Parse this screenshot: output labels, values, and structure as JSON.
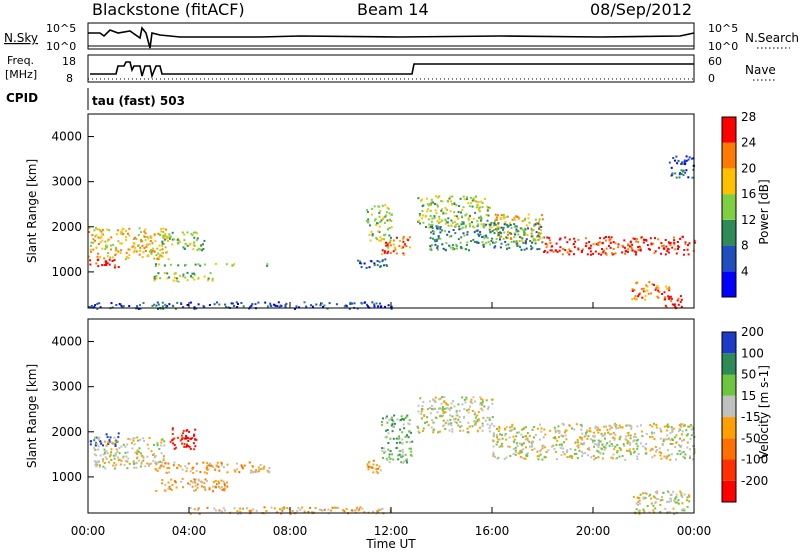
{
  "header": {
    "station": "Blackstone (fitACF)",
    "beam": "Beam 14",
    "date": "08/Sep/2012"
  },
  "aux_panels": {
    "nsky_label": "N.Sky",
    "nsky_ticks": [
      "10^5",
      "10^0"
    ],
    "nsearch_label": "N.Search",
    "nsearch_ticks": [
      "10^5",
      "10^0"
    ],
    "freq_label_1": "Freq.",
    "freq_label_2": "[MHz]",
    "freq_ticks": [
      "18",
      "8"
    ],
    "nave_label": "Nave",
    "nave_ticks": [
      "60",
      "0"
    ],
    "cpid_label": "CPID",
    "cpid_value": "tau (fast) 503"
  },
  "chart_data": [
    {
      "type": "heatmap",
      "name": "power",
      "ylabel": "Slant Range [km]",
      "yticks": [
        "1000",
        "2000",
        "3000",
        "4000"
      ],
      "ylim": [
        200,
        4500
      ],
      "colorbar_label": "Power [dB]",
      "colorbar_ticks": [
        "4",
        "8",
        "12",
        "16",
        "20",
        "24",
        "28"
      ],
      "colorbar_colors": [
        "#0000ff",
        "#1f4fbf",
        "#2e8b57",
        "#7fd040",
        "#ffc000",
        "#ff7a00",
        "#ff0000"
      ],
      "regions": [
        {
          "x0": 0.0,
          "x1": 3.2,
          "r0": 1300,
          "r1": 2000,
          "level": 4
        },
        {
          "x0": 0.0,
          "x1": 1.2,
          "r0": 1100,
          "r1": 1300,
          "level": 6
        },
        {
          "x0": 2.8,
          "x1": 4.6,
          "r0": 1500,
          "r1": 1900,
          "level": 3
        },
        {
          "x0": 2.5,
          "x1": 7.2,
          "r0": 1150,
          "r1": 1200,
          "level": 3
        },
        {
          "x0": 2.5,
          "x1": 5.0,
          "r0": 800,
          "r1": 1000,
          "level": 3
        },
        {
          "x0": 10.6,
          "x1": 12.0,
          "r0": 1100,
          "r1": 1300,
          "level": 1
        },
        {
          "x0": 11.0,
          "x1": 12.0,
          "r0": 1700,
          "r1": 2500,
          "level": 3
        },
        {
          "x0": 11.6,
          "x1": 12.8,
          "r0": 1400,
          "r1": 1800,
          "level": 5
        },
        {
          "x0": 13.0,
          "x1": 16.0,
          "r0": 2000,
          "r1": 2700,
          "level": 3
        },
        {
          "x0": 16.0,
          "x1": 18.0,
          "r0": 1700,
          "r1": 2300,
          "level": 4
        },
        {
          "x0": 18.0,
          "x1": 24.0,
          "r0": 1400,
          "r1": 1800,
          "level": 6
        },
        {
          "x0": 13.5,
          "x1": 18.0,
          "r0": 1500,
          "r1": 2100,
          "level": 2
        },
        {
          "x0": 21.5,
          "x1": 23.0,
          "r0": 400,
          "r1": 800,
          "level": 5
        },
        {
          "x0": 22.8,
          "x1": 23.5,
          "r0": 200,
          "r1": 500,
          "level": 6
        },
        {
          "x0": 23.0,
          "x1": 24.0,
          "r0": 3100,
          "r1": 3600,
          "level": 1
        },
        {
          "x0": 0.0,
          "x1": 12.0,
          "r0": 200,
          "r1": 350,
          "level": 1
        }
      ]
    },
    {
      "type": "heatmap",
      "name": "velocity",
      "ylabel": "Slant Range [km]",
      "yticks": [
        "1000",
        "2000",
        "3000",
        "4000"
      ],
      "ylim": [
        200,
        4500
      ],
      "colorbar_label": "Velocity [m s-1]",
      "colorbar_ticks": [
        "200",
        "100",
        "50",
        "15",
        "-15",
        "-50",
        "-100",
        "-200"
      ],
      "colorbar_colors": [
        "#1c3cc8",
        "#2e8b57",
        "#6cc640",
        "#c0c0c0",
        "#ffa000",
        "#ff7000",
        "#ff3000",
        "#ff0000"
      ],
      "regions": [
        {
          "x0": 0.0,
          "x1": 1.2,
          "r0": 1700,
          "r1": 2000,
          "level": 0
        },
        {
          "x0": 0.2,
          "x1": 3.0,
          "r0": 1200,
          "r1": 1900,
          "level": 3
        },
        {
          "x0": 3.2,
          "x1": 4.4,
          "r0": 1600,
          "r1": 2100,
          "level": 7
        },
        {
          "x0": 2.5,
          "x1": 7.2,
          "r0": 1100,
          "r1": 1350,
          "level": 4
        },
        {
          "x0": 2.5,
          "x1": 5.5,
          "r0": 700,
          "r1": 1000,
          "level": 4
        },
        {
          "x0": 11.0,
          "x1": 11.6,
          "r0": 1100,
          "r1": 1400,
          "level": 4
        },
        {
          "x0": 11.6,
          "x1": 12.8,
          "r0": 1300,
          "r1": 2400,
          "level": 2
        },
        {
          "x0": 13.0,
          "x1": 16.0,
          "r0": 2000,
          "r1": 2800,
          "level": 3
        },
        {
          "x0": 16.0,
          "x1": 24.0,
          "r0": 1400,
          "r1": 2200,
          "level": 3
        },
        {
          "x0": 21.5,
          "x1": 23.8,
          "r0": 200,
          "r1": 700,
          "level": 3
        },
        {
          "x0": 4.0,
          "x1": 12.0,
          "r0": 200,
          "r1": 350,
          "level": 4
        }
      ]
    }
  ],
  "xaxis": {
    "label": "Time UT",
    "ticks": [
      "00:00",
      "04:00",
      "08:00",
      "12:00",
      "16:00",
      "20:00",
      "00:00"
    ]
  }
}
